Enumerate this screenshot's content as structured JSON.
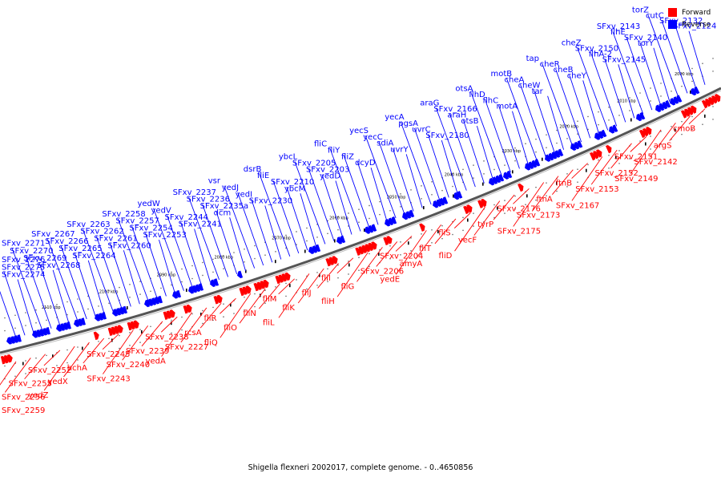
{
  "caption": "Shigella flexneri 2002017, complete genome. - 0..4650856",
  "legend": [
    {
      "label": "Forward",
      "color": "#ff0000"
    },
    {
      "label": "Reverse",
      "color": "#0000ff"
    }
  ],
  "colors": {
    "forward": "#ff0000",
    "reverse": "#0000ff",
    "backbone": "#555555"
  },
  "scale_ticks": [
    "2000 kbp",
    "2010 kbp",
    "2020 kbp",
    "2030 kbp",
    "2040 kbp",
    "2050 kbp",
    "2060 kbp",
    "2070 kbp",
    "2080 kbp",
    "2090 kbp",
    "2100 kbp",
    "2110 kbp"
  ],
  "reverse_genes": [
    "SFxv_2124",
    "SFxv_2132",
    "cutC",
    "torZ",
    "torY",
    "SFxv_2140",
    "flhE",
    "SFxv_2143",
    "SFxv_2145",
    "flhA-2",
    "SFxv_2150",
    "cheZ",
    "cheY",
    "cheB",
    "cheR",
    "tap",
    "tar",
    "cheW",
    "cheA",
    "motB",
    "motA",
    "flhC",
    "flhD",
    "otsA",
    "otsB",
    "araH",
    "SFxv_2166",
    "araG",
    "SFxv_2180",
    "uvrC",
    "pgsA",
    "yecA",
    "uvrY",
    "sdiA",
    "yecC",
    "yecS",
    "dcyD",
    "fliZ",
    "fliY",
    "fliC",
    "yedD",
    "SFxv_2203",
    "SFxv_2205",
    "ybcL",
    "ybcM",
    "SFxv_2210",
    "fliE",
    "dsrB",
    "SFxv_2230",
    "yedI",
    "yedJ",
    "vsr",
    "dcm",
    "SFxv_2235a",
    "SFxv_2236",
    "SFxv_2237",
    "SFxv_2241",
    "SFxv_2244",
    "yedV",
    "yedW",
    "SFxv_2253",
    "SFxv_2254",
    "SFxv_2257",
    "SFxv_2258",
    "SFxv_2260",
    "SFxv_2261",
    "SFxv_2262",
    "SFxv_2263",
    "SFxv_2264",
    "SFxv_2265",
    "SFxv_2266",
    "SFxv_2267",
    "SFxv_2268",
    "SFxv_2269",
    "SFxv_2270",
    "SFxv_2271",
    "SFxv_2274",
    "SFxv_2275",
    "SFxv_2276"
  ],
  "forward_genes": [
    "cmoB",
    "argS",
    "SFxv_2142",
    "SFxv_2149",
    "SFxv_2151",
    "SFxv_2152",
    "SFxv_2153",
    "SFxv_2167",
    "ftnB",
    "ftnA",
    "SFxv_2173",
    "SFxv_2175",
    "SFxv_2176",
    "tyrP",
    "yecF",
    "fliD",
    "fliS",
    "fliT",
    "amyA",
    "yedE",
    "SFxv_2204",
    "SFxv_2206",
    "fliG",
    "fliH",
    "fliI",
    "fliJ",
    "fliK",
    "fliL",
    "fliM",
    "fliN",
    "fliO",
    "fliQ",
    "fliR",
    "rcsA",
    "SFxv_2227",
    "yedA",
    "SFxv_2238",
    "SFxv_2239",
    "SFxv_2240",
    "SFxv_2243",
    "SFxv_2245",
    "hchA",
    "yedX",
    "yedZ",
    "SFxv_2252",
    "SFxv_2255",
    "SFxv_2256",
    "SFxv_2259"
  ]
}
